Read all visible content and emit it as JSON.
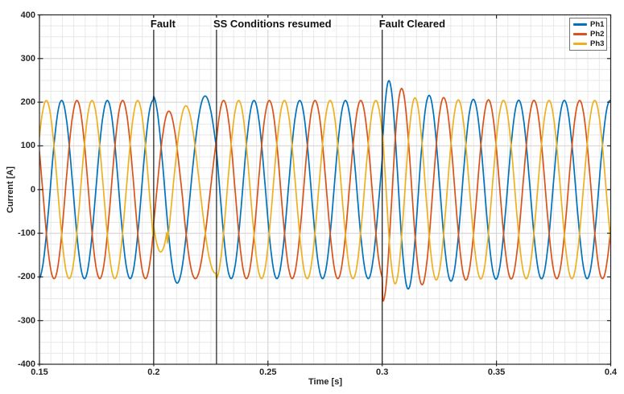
{
  "chart_data": {
    "type": "line",
    "title": "",
    "xlabel": "Time [s]",
    "ylabel": "Current [A]",
    "xlim": [
      0.15,
      0.4
    ],
    "ylim": [
      -400,
      400
    ],
    "xticks": [
      "0.15",
      "0.2",
      "0.25",
      "0.3",
      "0.35",
      "0.4"
    ],
    "yticks": [
      "400",
      "300",
      "200",
      "100",
      "0",
      "-100",
      "-200",
      "-300",
      "-400"
    ],
    "x_minor_step_s": 0.005,
    "y_minor_step_A": 25,
    "grid": "major and minor gridlines on, light gray",
    "axis_color": "#262626",
    "grid_minor_color": "#e8e8e8",
    "grid_major_color": "#d4d4d4",
    "annotation_line_color": "#1a1a1a",
    "legend": {
      "position": "top-right",
      "entries": [
        {
          "label": "Ph1",
          "color": "#0072BD"
        },
        {
          "label": "Ph2",
          "color": "#D95319"
        },
        {
          "label": "Ph3",
          "color": "#EDB120"
        }
      ]
    },
    "annotations": [
      {
        "label": "Fault",
        "x": 0.2
      },
      {
        "label": "SS Conditions resumed",
        "x": 0.2275
      },
      {
        "label": "Fault Cleared",
        "x": 0.3
      }
    ],
    "signal": {
      "description": "Three-phase 50 Hz sinusoidal currents, ~204 A amplitude; slight distortion during fault (0.2-0.2275 s) with accumulated phase lag; transient overshoot to ~250 A on Ph1 after fault cleared at 0.3 s, settling back to steady state by ~0.34 s",
      "frequency_hz": 50,
      "base_amplitude_A": 204,
      "phases": [
        {
          "name": "Ph1",
          "color": "#0072BD",
          "peak_time_s": 0.1597
        },
        {
          "name": "Ph2",
          "color": "#D95319",
          "peak_time_s": 0.1664
        },
        {
          "name": "Ph3",
          "color": "#EDB120",
          "peak_time_s": 0.153
        }
      ],
      "events": {
        "fault_start_s": 0.2,
        "ss_resumed_s": 0.2275,
        "fault_cleared_s": 0.3,
        "fault_phase_lag_s": 0.0042,
        "fault_factors_early": [
          1.05,
          0.88,
          0.7
        ],
        "fault_factors_late": [
          1.05,
          1.0,
          0.94
        ],
        "fault_factor_switch_s": [
          0.2,
          0.213,
          0.206
        ],
        "clear_overshoot_factors": [
          0.28,
          0.26,
          0.09
        ],
        "clear_decay_tau_s": 0.013,
        "peak_current_after_clear_A": 250
      }
    }
  }
}
